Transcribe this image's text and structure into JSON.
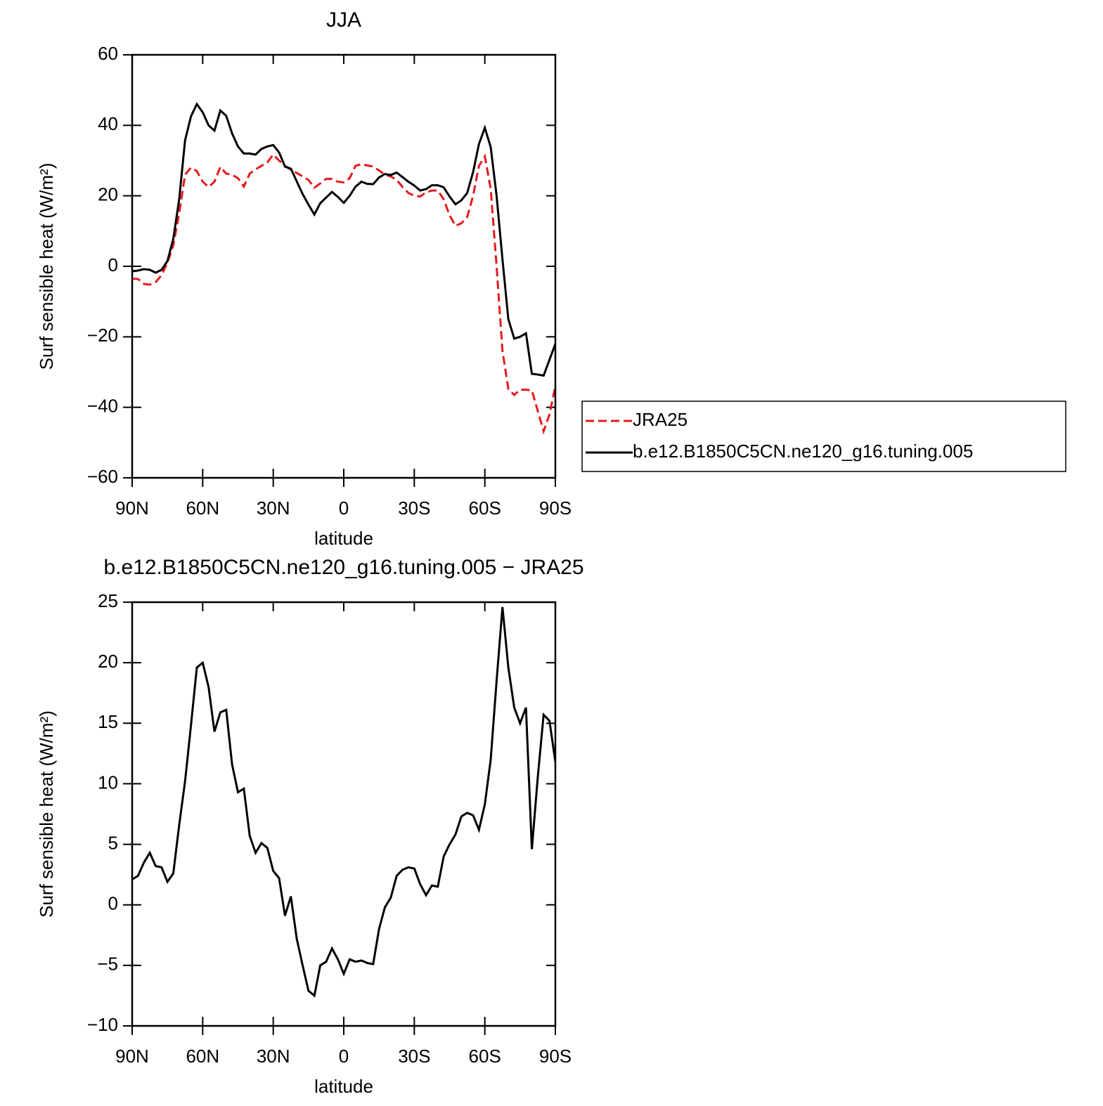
{
  "chart_data": [
    {
      "type": "line",
      "title": "JJA",
      "xlabel": "latitude",
      "ylabel": "Surf sensible heat (W/m²)",
      "legend": "right",
      "x": [
        90,
        87.5,
        85,
        82.5,
        80,
        77.5,
        75,
        72.5,
        70,
        67.5,
        65,
        62.5,
        60,
        57.5,
        55,
        52.5,
        50,
        47.5,
        45,
        42.5,
        40,
        37.5,
        35,
        32.5,
        30,
        27.5,
        25,
        22.5,
        20,
        17.5,
        15,
        12.5,
        10,
        7.5,
        5,
        2.5,
        0,
        -2.5,
        -5,
        -7.5,
        -10,
        -12.5,
        -15,
        -17.5,
        -20,
        -22.5,
        -25,
        -27.5,
        -30,
        -32.5,
        -35,
        -37.5,
        -40,
        -42.5,
        -45,
        -47.5,
        -50,
        -52.5,
        -55,
        -57.5,
        -60,
        -62.5,
        -65,
        -67.5,
        -70,
        -72.5,
        -75,
        -77.5,
        -80,
        -82.5,
        -85,
        -87.5,
        -90
      ],
      "series": [
        {
          "name": "JRA25",
          "color": "#e41a1c",
          "style": "dashed",
          "values": [
            -3.5,
            -3.6,
            -5,
            -5.2,
            -4.5,
            -2.5,
            1,
            6,
            15,
            26,
            28,
            27,
            24,
            22.5,
            24,
            28.2,
            26.3,
            26,
            25,
            22.6,
            26.3,
            27.5,
            28.5,
            29.5,
            31.7,
            30,
            28.5,
            27.4,
            26.5,
            25.5,
            24.5,
            22.3,
            23.5,
            24.8,
            24.8,
            24,
            23.8,
            25,
            28.5,
            29,
            28.6,
            28.3,
            27.2,
            26,
            25.5,
            24.5,
            22.5,
            20.8,
            20,
            19.8,
            21,
            21.5,
            21.5,
            19,
            14.5,
            11.5,
            12.2,
            14,
            20,
            28.5,
            31.2,
            22,
            0,
            -24,
            -34.8,
            -36.5,
            -35,
            -35,
            -35.2,
            -41,
            -46.8,
            -42,
            -34
          ]
        },
        {
          "name": "b.e12.B1850C5CN.ne120_g16.tuning.005",
          "color": "#000000",
          "style": "solid",
          "values": [
            -1.4,
            -1.2,
            -0.8,
            -1,
            -1.8,
            -1,
            1.5,
            7.8,
            19,
            35.7,
            42.5,
            46,
            43.7,
            40,
            38.5,
            44.2,
            42.7,
            37.7,
            34,
            32,
            32,
            31.7,
            33.3,
            34,
            34.4,
            32.3,
            28.3,
            27.7,
            24.1,
            20.5,
            17.5,
            14.7,
            17.9,
            19.5,
            21.1,
            19.7,
            18,
            20,
            22.6,
            24,
            23.4,
            23.3,
            25.2,
            26.2,
            25.9,
            26.6,
            25.3,
            24,
            22.9,
            21.5,
            21.9,
            23,
            23,
            22.4,
            19.8,
            17.6,
            18.7,
            20.8,
            26.7,
            34.7,
            39.3,
            33.8,
            20,
            2,
            -15,
            -20.5,
            -20,
            -19,
            -30.5,
            -30.7,
            -31,
            -26.5,
            -22
          ]
        }
      ],
      "xlim": [
        90,
        -90
      ],
      "xticks": [
        {
          "value": 90,
          "label": "90N"
        },
        {
          "value": 60,
          "label": "60N"
        },
        {
          "value": 30,
          "label": "30N"
        },
        0,
        {
          "value": -30,
          "label": "30S"
        },
        {
          "value": -60,
          "label": "60S"
        },
        {
          "value": -90,
          "label": "90S"
        }
      ],
      "ylim": [
        -60,
        60
      ],
      "yticks": [
        {
          "value": -60,
          "label": "−60"
        },
        {
          "value": -40,
          "label": "−40"
        },
        {
          "value": -20,
          "label": "−20"
        },
        0,
        20,
        40,
        60
      ]
    },
    {
      "type": "line",
      "title": "b.e12.B1850C5CN.ne120_g16.tuning.005 − JRA25",
      "xlabel": "latitude",
      "ylabel": "Surf sensible heat (W/m²)",
      "x": [
        90,
        87.5,
        85,
        82.5,
        80,
        77.5,
        75,
        72.5,
        70,
        67.5,
        65,
        62.5,
        60,
        57.5,
        55,
        52.5,
        50,
        47.5,
        45,
        42.5,
        40,
        37.5,
        35,
        32.5,
        30,
        27.5,
        25,
        22.5,
        20,
        17.5,
        15,
        12.5,
        10,
        7.5,
        5,
        2.5,
        0,
        -2.5,
        -5,
        -7.5,
        -10,
        -12.5,
        -15,
        -17.5,
        -20,
        -22.5,
        -25,
        -27.5,
        -30,
        -32.5,
        -35,
        -37.5,
        -40,
        -42.5,
        -45,
        -47.5,
        -50,
        -52.5,
        -55,
        -57.5,
        -60,
        -62.5,
        -65,
        -67.5,
        -70,
        -72.5,
        -75,
        -77.5,
        -80,
        -82.5,
        -85,
        -87.5,
        -90
      ],
      "series": [
        {
          "color": "#000000",
          "style": "solid",
          "values": [
            2.1,
            2.4,
            3.5,
            4.3,
            3.2,
            3.1,
            1.9,
            2.6,
            6.6,
            10.2,
            14.8,
            19.6,
            20,
            18,
            14.3,
            15.9,
            16.1,
            11.6,
            9.3,
            9.6,
            5.7,
            4.3,
            5.1,
            4.7,
            2.8,
            2.2,
            -0.9,
            0.7,
            -2.8,
            -5,
            -7.1,
            -7.5,
            -5,
            -4.7,
            -3.6,
            -4.5,
            -5.7,
            -4.5,
            -4.7,
            -4.6,
            -4.8,
            -4.9,
            -2,
            -0.2,
            0.6,
            2.4,
            2.9,
            3.1,
            3,
            1.7,
            0.8,
            1.6,
            1.5,
            4,
            5,
            5.8,
            7.3,
            7.6,
            7.4,
            6.2,
            8.3,
            12,
            18.5,
            24.6,
            19.6,
            16.3,
            15,
            16.3,
            4.6,
            10.5,
            15.7,
            15.2,
            11.8
          ]
        }
      ],
      "xlim": [
        90,
        -90
      ],
      "xticks": [
        {
          "value": 90,
          "label": "90N"
        },
        {
          "value": 60,
          "label": "60N"
        },
        {
          "value": 30,
          "label": "30N"
        },
        0,
        {
          "value": -30,
          "label": "30S"
        },
        {
          "value": -60,
          "label": "60S"
        },
        {
          "value": -90,
          "label": "90S"
        }
      ],
      "ylim": [
        -10,
        25
      ],
      "yticks": [
        {
          "value": -10,
          "label": "−10"
        },
        {
          "value": -5,
          "label": "−5"
        },
        0,
        5,
        10,
        15,
        20,
        25
      ]
    }
  ]
}
